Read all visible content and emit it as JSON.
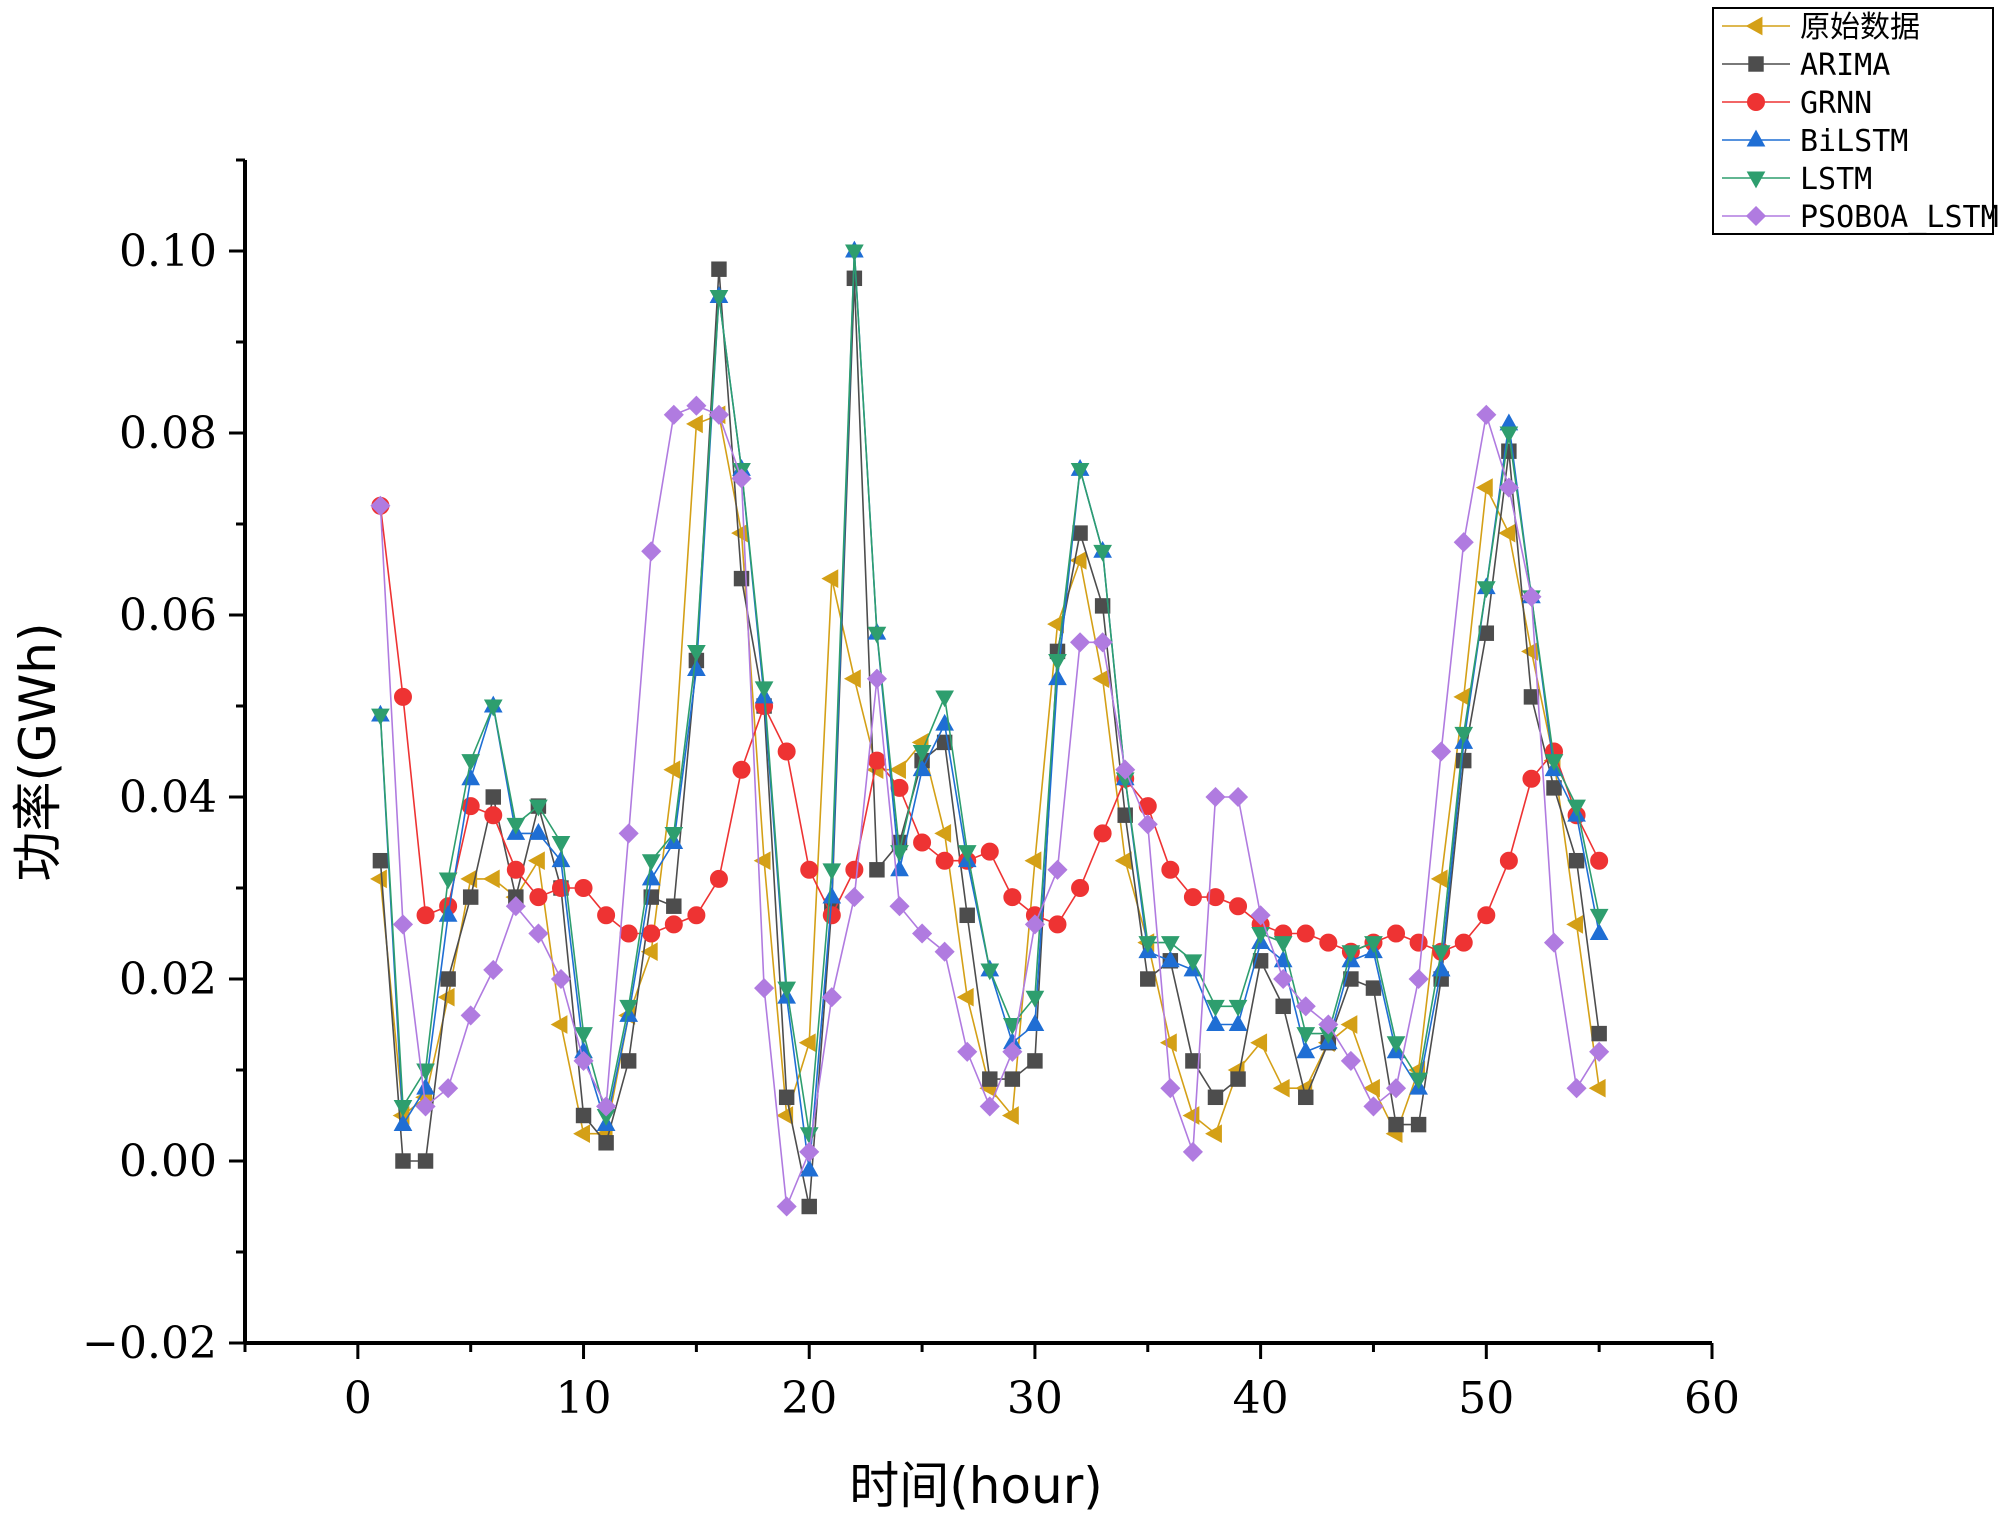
{
  "chart_data": {
    "type": "line",
    "title": "",
    "xlabel": "时间(hour)",
    "ylabel": "功率(GWh)",
    "xlim": [
      -5,
      60
    ],
    "ylim": [
      -0.02,
      0.11
    ],
    "xticks": [
      0,
      10,
      20,
      30,
      40,
      50,
      60
    ],
    "xtick_labels": [
      "0",
      "10",
      "20",
      "30",
      "40",
      "50",
      "60"
    ],
    "yticks": [
      -0.02,
      0.0,
      0.02,
      0.04,
      0.06,
      0.08,
      0.1
    ],
    "ytick_labels": [
      "−0.02",
      "0.00",
      "0.02",
      "0.04",
      "0.06",
      "0.08",
      "0.10"
    ],
    "grid": false,
    "legend_position": "top-right",
    "x": [
      1,
      2,
      3,
      4,
      5,
      6,
      7,
      8,
      9,
      10,
      11,
      12,
      13,
      14,
      15,
      16,
      17,
      18,
      19,
      20,
      21,
      22,
      23,
      24,
      25,
      26,
      27,
      28,
      29,
      30,
      31,
      32,
      33,
      34,
      35,
      36,
      37,
      38,
      39,
      40,
      41,
      42,
      43,
      44,
      45,
      46,
      47,
      48,
      49,
      50,
      51,
      52,
      53,
      54,
      55
    ],
    "series": [
      {
        "name": "原始数据",
        "color": "#d4a017",
        "marker": "triangle-left",
        "values": [
          0.031,
          0.005,
          0.007,
          0.018,
          0.031,
          0.031,
          0.029,
          0.033,
          0.015,
          0.003,
          0.003,
          0.016,
          0.023,
          0.043,
          0.081,
          0.082,
          0.069,
          0.033,
          0.005,
          0.013,
          0.064,
          0.053,
          0.043,
          0.043,
          0.046,
          0.036,
          0.018,
          0.008,
          0.005,
          0.033,
          0.059,
          0.066,
          0.053,
          0.033,
          0.024,
          0.013,
          0.005,
          0.003,
          0.01,
          0.013,
          0.008,
          0.008,
          0.013,
          0.015,
          0.008,
          0.003,
          0.01,
          0.031,
          0.051,
          0.074,
          0.069,
          0.056,
          0.044,
          0.026,
          0.008
        ]
      },
      {
        "name": "ARIMA",
        "color": "#4d4d4d",
        "marker": "square",
        "values": [
          0.033,
          0.0,
          0.0,
          0.02,
          0.029,
          0.04,
          0.029,
          0.039,
          0.03,
          0.005,
          0.002,
          0.011,
          0.029,
          0.028,
          0.055,
          0.098,
          0.064,
          0.05,
          0.007,
          -0.005,
          0.028,
          0.097,
          0.032,
          0.035,
          0.044,
          0.046,
          0.027,
          0.009,
          0.009,
          0.011,
          0.056,
          0.069,
          0.061,
          0.038,
          0.02,
          0.022,
          0.011,
          0.007,
          0.009,
          0.022,
          0.017,
          0.007,
          0.013,
          0.02,
          0.019,
          0.004,
          0.004,
          0.02,
          0.044,
          0.058,
          0.078,
          0.051,
          0.041,
          0.033,
          0.014
        ]
      },
      {
        "name": "GRNN",
        "color": "#ee3333",
        "marker": "circle",
        "values": [
          0.072,
          0.051,
          0.027,
          0.028,
          0.039,
          0.038,
          0.032,
          0.029,
          0.03,
          0.03,
          0.027,
          0.025,
          0.025,
          0.026,
          0.027,
          0.031,
          0.043,
          0.05,
          0.045,
          0.032,
          0.027,
          0.032,
          0.044,
          0.041,
          0.035,
          0.033,
          0.033,
          0.034,
          0.029,
          0.027,
          0.026,
          0.03,
          0.036,
          0.042,
          0.039,
          0.032,
          0.029,
          0.029,
          0.028,
          0.026,
          0.025,
          0.025,
          0.024,
          0.023,
          0.024,
          0.025,
          0.024,
          0.023,
          0.024,
          0.027,
          0.033,
          0.042,
          0.045,
          0.038,
          0.033
        ]
      },
      {
        "name": "BiLSTM",
        "color": "#1f6ed4",
        "marker": "triangle-up",
        "values": [
          0.049,
          0.004,
          0.008,
          0.027,
          0.042,
          0.05,
          0.036,
          0.036,
          0.033,
          0.012,
          0.004,
          0.016,
          0.031,
          0.035,
          0.054,
          0.095,
          0.076,
          0.051,
          0.018,
          -0.001,
          0.029,
          0.1,
          0.058,
          0.032,
          0.043,
          0.048,
          0.033,
          0.021,
          0.013,
          0.015,
          0.053,
          0.076,
          0.067,
          0.042,
          0.023,
          0.022,
          0.021,
          0.015,
          0.015,
          0.024,
          0.022,
          0.012,
          0.013,
          0.022,
          0.023,
          0.012,
          0.008,
          0.021,
          0.046,
          0.063,
          0.081,
          0.062,
          0.043,
          0.038,
          0.025
        ]
      },
      {
        "name": "LSTM",
        "color": "#2e9e6e",
        "marker": "triangle-down",
        "values": [
          0.049,
          0.006,
          0.01,
          0.031,
          0.044,
          0.05,
          0.037,
          0.039,
          0.035,
          0.014,
          0.005,
          0.017,
          0.033,
          0.036,
          0.056,
          0.095,
          0.076,
          0.052,
          0.019,
          0.003,
          0.032,
          0.1,
          0.058,
          0.034,
          0.045,
          0.051,
          0.034,
          0.021,
          0.015,
          0.018,
          0.055,
          0.076,
          0.067,
          0.042,
          0.024,
          0.024,
          0.022,
          0.017,
          0.017,
          0.025,
          0.024,
          0.014,
          0.014,
          0.023,
          0.024,
          0.013,
          0.009,
          0.023,
          0.047,
          0.063,
          0.08,
          0.062,
          0.044,
          0.039,
          0.027
        ]
      },
      {
        "name": "PSOBOA_LSTM",
        "color": "#b07be0",
        "marker": "diamond",
        "values": [
          0.072,
          0.026,
          0.006,
          0.008,
          0.016,
          0.021,
          0.028,
          0.025,
          0.02,
          0.011,
          0.006,
          0.036,
          0.067,
          0.082,
          0.083,
          0.082,
          0.075,
          0.019,
          -0.005,
          0.001,
          0.018,
          0.029,
          0.053,
          0.028,
          0.025,
          0.023,
          0.012,
          0.006,
          0.012,
          0.026,
          0.032,
          0.057,
          0.057,
          0.043,
          0.037,
          0.008,
          0.001,
          0.04,
          0.04,
          0.027,
          0.02,
          0.017,
          0.015,
          0.011,
          0.006,
          0.008,
          0.02,
          0.045,
          0.068,
          0.082,
          0.074,
          0.062,
          0.024,
          0.008,
          0.012
        ]
      }
    ]
  }
}
